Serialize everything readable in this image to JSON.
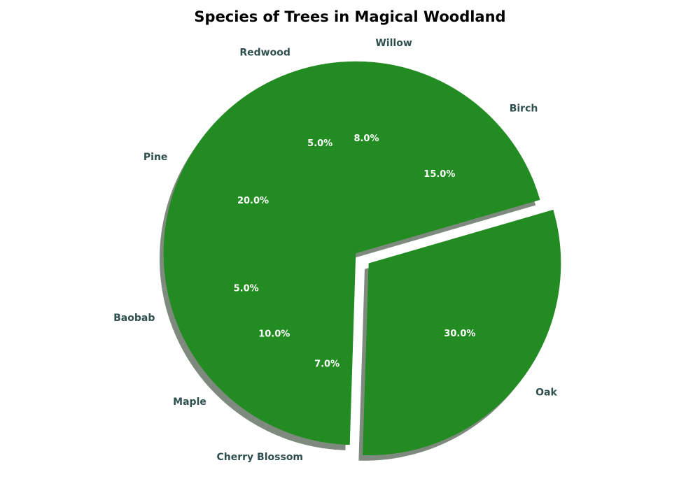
{
  "chart_data": {
    "type": "pie",
    "title": "Species of Trees in Magical Woodland",
    "categories": [
      "Oak",
      "Birch",
      "Willow",
      "Redwood",
      "Pine",
      "Baobab",
      "Maple",
      "Cherry Blossom"
    ],
    "values": [
      30,
      15,
      8,
      5,
      20,
      5,
      10,
      7
    ],
    "value_labels": [
      "30.0%",
      "15.0%",
      "8.0%",
      "5.0%",
      "20.0%",
      "5.0%",
      "10.0%",
      "7.0%"
    ],
    "exploded": [
      "Oak"
    ],
    "shadow": true,
    "legend": "none",
    "slice_color": "#228b22",
    "shadow_color": "#7f8a7f",
    "label_color": "#2f4f4f",
    "pct_color": "#ffffff"
  }
}
